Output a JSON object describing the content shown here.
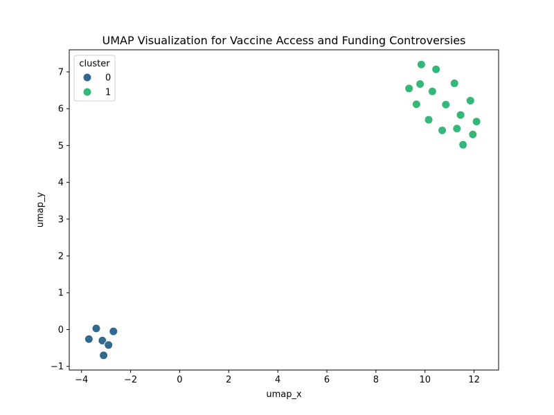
{
  "chart_data": {
    "type": "scatter",
    "title": "UMAP Visualization for Vaccine Access and Funding Controversies",
    "xlabel": "umap_x",
    "ylabel": "umap_y",
    "xlim": [
      -4.5,
      13.0
    ],
    "ylim": [
      -1.1,
      7.6
    ],
    "xticks": [
      -4,
      -2,
      0,
      2,
      4,
      6,
      8,
      10,
      12
    ],
    "yticks": [
      -1,
      0,
      1,
      2,
      3,
      4,
      5,
      6,
      7
    ],
    "grid": false,
    "legend": {
      "title": "cluster",
      "placement": "top-left"
    },
    "series": [
      {
        "name": "0",
        "color": "#31688e",
        "points": [
          {
            "x": -3.4,
            "y": 0.03
          },
          {
            "x": -3.7,
            "y": -0.26
          },
          {
            "x": -3.15,
            "y": -0.3
          },
          {
            "x": -2.7,
            "y": -0.05
          },
          {
            "x": -2.9,
            "y": -0.42
          },
          {
            "x": -3.1,
            "y": -0.7
          }
        ]
      },
      {
        "name": "1",
        "color": "#35b779",
        "points": [
          {
            "x": 9.85,
            "y": 7.2
          },
          {
            "x": 10.45,
            "y": 7.07
          },
          {
            "x": 9.35,
            "y": 6.55
          },
          {
            "x": 9.8,
            "y": 6.67
          },
          {
            "x": 10.3,
            "y": 6.47
          },
          {
            "x": 11.2,
            "y": 6.69
          },
          {
            "x": 9.65,
            "y": 6.12
          },
          {
            "x": 10.85,
            "y": 6.11
          },
          {
            "x": 11.85,
            "y": 6.22
          },
          {
            "x": 11.45,
            "y": 5.83
          },
          {
            "x": 10.15,
            "y": 5.7
          },
          {
            "x": 12.1,
            "y": 5.65
          },
          {
            "x": 10.7,
            "y": 5.41
          },
          {
            "x": 11.3,
            "y": 5.46
          },
          {
            "x": 11.95,
            "y": 5.3
          },
          {
            "x": 11.55,
            "y": 5.02
          }
        ]
      }
    ]
  }
}
